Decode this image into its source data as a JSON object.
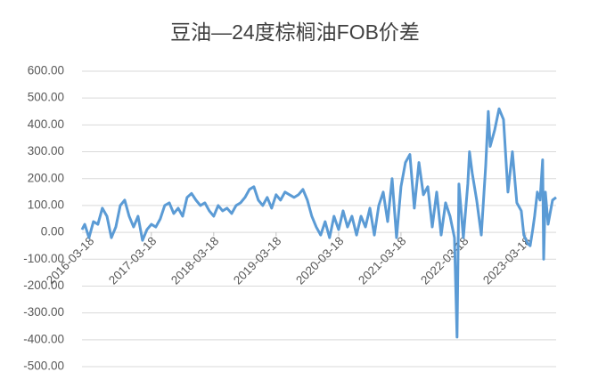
{
  "chart_data": {
    "type": "line",
    "title": "豆油—24度棕榈油FOB价差",
    "color": "#5b9bd5",
    "grid": true,
    "xlim": [
      "2016-02-06",
      "2023-09-12"
    ],
    "xticks": [
      "2016-03-18",
      "2017-03-18",
      "2018-03-18",
      "2019-03-18",
      "2020-03-18",
      "2021-03-18",
      "2022-03-18",
      "2023-03-18"
    ],
    "ylim": [
      -500,
      600
    ],
    "yticks": [
      {
        "value": -500,
        "label": "-500.00"
      },
      {
        "value": -400,
        "label": "-400.00"
      },
      {
        "value": -300,
        "label": "-300.00"
      },
      {
        "value": -200,
        "label": "-200.00"
      },
      {
        "value": -100,
        "label": "-100.00"
      },
      {
        "value": 0,
        "label": "0.00"
      },
      {
        "value": 100,
        "label": "100.00"
      },
      {
        "value": 200,
        "label": "200.00"
      },
      {
        "value": 300,
        "label": "300.00"
      },
      {
        "value": 400,
        "label": "400.00"
      },
      {
        "value": 500,
        "label": "500.00"
      },
      {
        "value": 600,
        "label": "600.00"
      }
    ],
    "x": [
      "2016-02-06",
      "2016-02-22",
      "2016-03-18",
      "2016-04-13",
      "2016-05-09",
      "2016-06-04",
      "2016-07-01",
      "2016-07-27",
      "2016-08-22",
      "2016-09-17",
      "2016-10-13",
      "2016-11-08",
      "2016-12-04",
      "2016-12-30",
      "2017-01-25",
      "2017-02-20",
      "2017-03-18",
      "2017-04-13",
      "2017-05-09",
      "2017-06-04",
      "2017-07-01",
      "2017-07-27",
      "2017-08-22",
      "2017-09-17",
      "2017-10-13",
      "2017-11-08",
      "2017-12-04",
      "2017-12-30",
      "2018-01-25",
      "2018-02-20",
      "2018-03-18",
      "2018-04-13",
      "2018-05-09",
      "2018-06-04",
      "2018-07-01",
      "2018-07-27",
      "2018-08-22",
      "2018-09-17",
      "2018-10-13",
      "2018-11-08",
      "2018-12-04",
      "2018-12-30",
      "2019-01-25",
      "2019-02-20",
      "2019-03-18",
      "2019-04-13",
      "2019-05-09",
      "2019-06-04",
      "2019-07-01",
      "2019-07-27",
      "2019-08-22",
      "2019-09-17",
      "2019-10-13",
      "2019-11-08",
      "2019-12-04",
      "2019-12-30",
      "2020-01-25",
      "2020-02-20",
      "2020-03-18",
      "2020-04-13",
      "2020-05-09",
      "2020-06-04",
      "2020-07-01",
      "2020-07-27",
      "2020-08-22",
      "2020-09-17",
      "2020-10-13",
      "2020-11-08",
      "2020-12-04",
      "2020-12-30",
      "2021-01-25",
      "2021-02-20",
      "2021-03-18",
      "2021-04-13",
      "2021-05-09",
      "2021-06-04",
      "2021-07-01",
      "2021-07-27",
      "2021-08-22",
      "2021-09-17",
      "2021-10-13",
      "2021-11-08",
      "2021-12-04",
      "2021-12-30",
      "2022-01-25",
      "2022-02-09",
      "2022-02-20",
      "2022-03-18",
      "2022-04-13",
      "2022-04-23",
      "2022-05-09",
      "2022-06-04",
      "2022-07-01",
      "2022-07-27",
      "2022-08-11",
      "2022-08-22",
      "2022-09-17",
      "2022-10-13",
      "2022-11-08",
      "2022-12-04",
      "2022-12-30",
      "2023-01-25",
      "2023-02-20",
      "2023-03-07",
      "2023-03-28",
      "2023-04-13",
      "2023-04-28",
      "2023-05-09",
      "2023-05-25",
      "2023-06-10",
      "2023-06-25",
      "2023-07-01",
      "2023-07-11",
      "2023-07-27",
      "2023-08-22",
      "2023-09-12"
    ],
    "values": [
      10,
      30,
      -20,
      40,
      30,
      90,
      60,
      -20,
      20,
      100,
      120,
      60,
      20,
      60,
      -30,
      10,
      30,
      20,
      50,
      100,
      110,
      70,
      90,
      60,
      130,
      145,
      120,
      100,
      110,
      80,
      60,
      100,
      80,
      90,
      70,
      100,
      110,
      130,
      160,
      170,
      120,
      100,
      130,
      90,
      140,
      120,
      150,
      140,
      130,
      140,
      160,
      120,
      60,
      20,
      -10,
      40,
      -20,
      60,
      10,
      80,
      20,
      60,
      -10,
      60,
      20,
      90,
      -10,
      100,
      150,
      40,
      200,
      -20,
      170,
      260,
      290,
      90,
      260,
      140,
      170,
      20,
      150,
      -10,
      110,
      60,
      -20,
      -390,
      180,
      -20,
      180,
      300,
      220,
      120,
      -10,
      250,
      450,
      320,
      380,
      460,
      420,
      150,
      300,
      110,
      80,
      -10,
      -40,
      -50,
      10,
      60,
      150,
      120,
      270,
      -100,
      150,
      30,
      120,
      130
    ]
  }
}
